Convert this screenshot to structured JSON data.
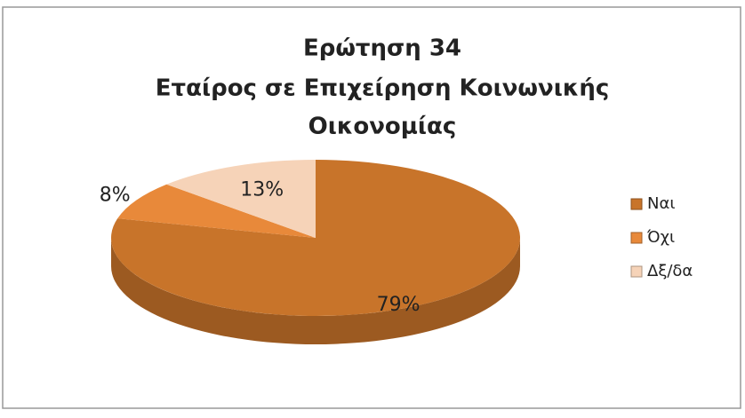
{
  "chart_data": {
    "type": "pie",
    "title": [
      "Ερώτηση 34",
      "Εταίρος σε Επιχείρηση Κοινωνικής",
      "Οικονομίας"
    ],
    "categories": [
      "Ναι",
      "Όχι",
      "Δξ/δα"
    ],
    "values": [
      79,
      8,
      13
    ],
    "value_labels": [
      "79%",
      "8%",
      "13%"
    ],
    "colors": [
      "#c8742a",
      "#e8893a",
      "#f6d3b8"
    ],
    "legend": "right"
  }
}
